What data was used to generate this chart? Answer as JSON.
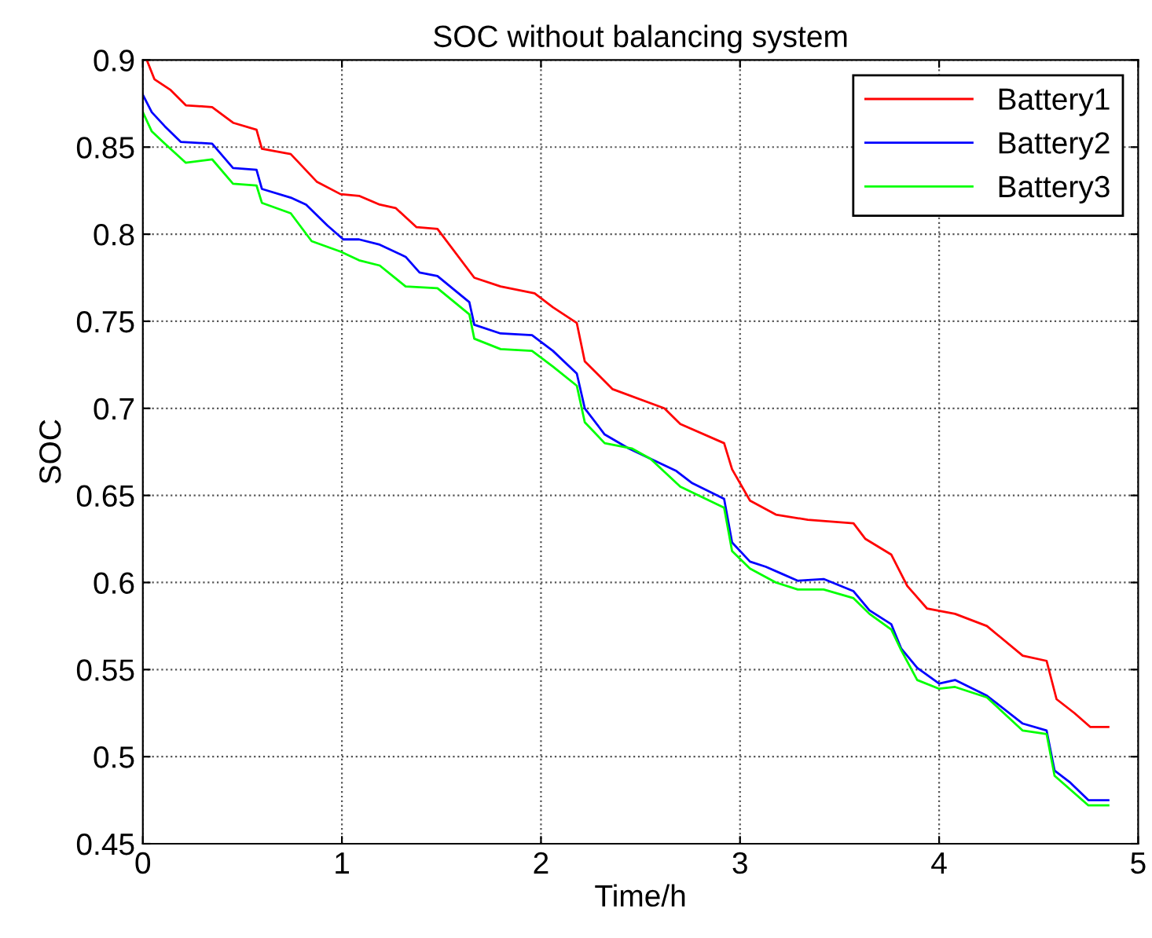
{
  "chart_data": {
    "type": "line",
    "title": "SOC without balancing system",
    "xlabel": "Time/h",
    "ylabel": "SOC",
    "xlim": [
      0,
      5
    ],
    "xticks": [
      0,
      1,
      2,
      3,
      4,
      5
    ],
    "ylim": [
      0.45,
      0.9
    ],
    "yticks": [
      0.45,
      0.5,
      0.55,
      0.6,
      0.65,
      0.7,
      0.75,
      0.8,
      0.85,
      0.9
    ],
    "grid": true,
    "legend": "top right",
    "line_style": "solid",
    "marker": "none",
    "series": [
      {
        "name": "Battery1",
        "color": "#ff0000",
        "x": [
          0.02,
          0.058,
          0.137,
          0.216,
          0.348,
          0.453,
          0.571,
          0.598,
          0.743,
          0.875,
          0.993,
          1.086,
          1.19,
          1.27,
          1.375,
          1.48,
          1.665,
          1.797,
          1.968,
          2.06,
          2.18,
          2.22,
          2.36,
          2.62,
          2.7,
          2.92,
          2.96,
          3.05,
          3.18,
          3.34,
          3.57,
          3.63,
          3.76,
          3.84,
          3.94,
          4.08,
          4.24,
          4.42,
          4.54,
          4.59,
          4.68,
          4.76,
          4.85
        ],
        "values": [
          0.9,
          0.889,
          0.883,
          0.874,
          0.873,
          0.864,
          0.86,
          0.849,
          0.846,
          0.83,
          0.823,
          0.822,
          0.817,
          0.815,
          0.804,
          0.803,
          0.775,
          0.77,
          0.766,
          0.758,
          0.749,
          0.727,
          0.711,
          0.7,
          0.691,
          0.68,
          0.665,
          0.647,
          0.639,
          0.636,
          0.634,
          0.625,
          0.616,
          0.598,
          0.585,
          0.582,
          0.575,
          0.558,
          0.555,
          0.533,
          0.525,
          0.517,
          0.517
        ]
      },
      {
        "name": "Battery2",
        "color": "#0000ff",
        "x": [
          0,
          0.045,
          0.11,
          0.19,
          0.348,
          0.453,
          0.571,
          0.598,
          0.743,
          0.82,
          0.927,
          1.007,
          1.086,
          1.19,
          1.32,
          1.39,
          1.48,
          1.64,
          1.665,
          1.797,
          1.955,
          2.06,
          2.18,
          2.22,
          2.32,
          2.44,
          2.68,
          2.76,
          2.92,
          2.96,
          3.05,
          3.13,
          3.21,
          3.29,
          3.42,
          3.57,
          3.65,
          3.76,
          3.81,
          3.89,
          4.0,
          4.08,
          4.24,
          4.42,
          4.54,
          4.58,
          4.66,
          4.75,
          4.85
        ],
        "values": [
          0.88,
          0.87,
          0.862,
          0.853,
          0.852,
          0.838,
          0.837,
          0.826,
          0.821,
          0.817,
          0.805,
          0.797,
          0.797,
          0.794,
          0.787,
          0.778,
          0.776,
          0.761,
          0.748,
          0.743,
          0.742,
          0.733,
          0.72,
          0.7,
          0.685,
          0.677,
          0.664,
          0.657,
          0.648,
          0.623,
          0.612,
          0.609,
          0.605,
          0.601,
          0.602,
          0.595,
          0.584,
          0.576,
          0.562,
          0.551,
          0.542,
          0.544,
          0.535,
          0.519,
          0.515,
          0.492,
          0.485,
          0.475,
          0.475
        ]
      },
      {
        "name": "Battery3",
        "color": "#00ff00",
        "x": [
          0,
          0.045,
          0.11,
          0.216,
          0.348,
          0.453,
          0.571,
          0.598,
          0.743,
          0.848,
          0.993,
          1.086,
          1.19,
          1.32,
          1.48,
          1.64,
          1.665,
          1.797,
          1.955,
          2.06,
          2.18,
          2.22,
          2.32,
          2.456,
          2.55,
          2.7,
          2.92,
          2.96,
          3.05,
          3.18,
          3.29,
          3.42,
          3.57,
          3.65,
          3.76,
          3.81,
          3.89,
          4.0,
          4.08,
          4.24,
          4.42,
          4.54,
          4.58,
          4.66,
          4.75,
          4.85
        ],
        "values": [
          0.87,
          0.859,
          0.852,
          0.841,
          0.843,
          0.829,
          0.828,
          0.818,
          0.812,
          0.796,
          0.79,
          0.785,
          0.782,
          0.77,
          0.769,
          0.754,
          0.74,
          0.734,
          0.733,
          0.724,
          0.713,
          0.692,
          0.68,
          0.677,
          0.671,
          0.655,
          0.643,
          0.618,
          0.608,
          0.6,
          0.596,
          0.596,
          0.591,
          0.582,
          0.573,
          0.561,
          0.544,
          0.539,
          0.54,
          0.534,
          0.515,
          0.513,
          0.489,
          0.481,
          0.472,
          0.472
        ]
      }
    ]
  }
}
